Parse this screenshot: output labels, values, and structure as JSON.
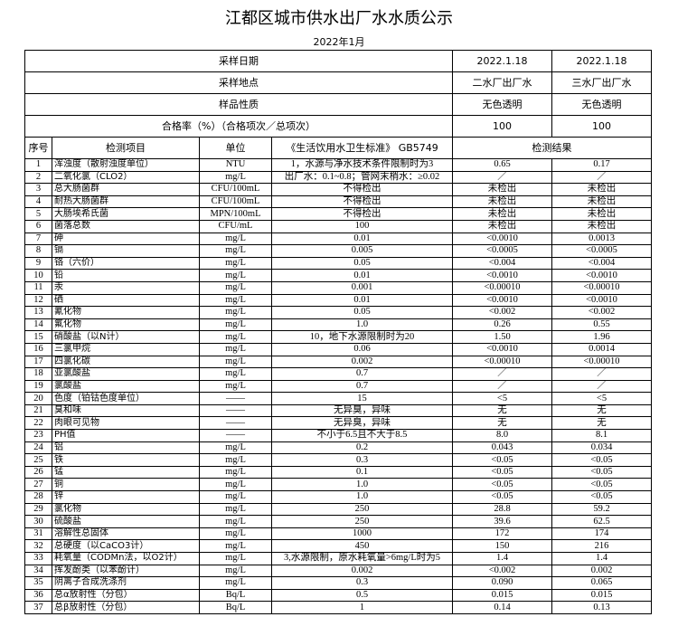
{
  "header": {
    "title": "江都区城市供水出厂水水质公示",
    "date": "2022年1月"
  },
  "table": {
    "meta": [
      [
        "采样日期",
        "2022.1.18",
        "2022.1.18"
      ],
      [
        "采样地点",
        "二水厂出厂水",
        "三水厂出厂水"
      ],
      [
        "样品性质",
        "无色透明",
        "无色透明"
      ],
      [
        "合格率（%）（合格项次／总项次）",
        "100",
        "100"
      ]
    ],
    "columns": [
      "序号",
      "检测项目",
      "单位",
      "《生活饮用水卫生标准》 GB5749",
      "检测结果"
    ],
    "rows": [
      [
        "1",
        "浑浊度（散射浊度单位）",
        "NTU",
        "1，水源与净水技术条件限制时为3",
        "0.65",
        "0.17"
      ],
      [
        "2",
        "二氧化氯（CLO2）",
        "mg/L",
        "出厂水：0.1~0.8；管网末梢水：≥0.02",
        "／",
        "／"
      ],
      [
        "3",
        "总大肠菌群",
        "CFU/100mL",
        "不得检出",
        "未检出",
        "未检出"
      ],
      [
        "4",
        "耐热大肠菌群",
        "CFU/100mL",
        "不得检出",
        "未检出",
        "未检出"
      ],
      [
        "5",
        "大肠埃希氏菌",
        "MPN/100mL",
        "不得检出",
        "未检出",
        "未检出"
      ],
      [
        "6",
        "菌落总数",
        "CFU/mL",
        "100",
        "未检出",
        "未检出"
      ],
      [
        "7",
        "砷",
        "mg/L",
        "0.01",
        "<0.0010",
        "0.0013"
      ],
      [
        "8",
        "镉",
        "mg/L",
        "0.005",
        "<0.0005",
        "<0.0005"
      ],
      [
        "9",
        "铬（六价）",
        "mg/L",
        "0.05",
        "<0.004",
        "<0.004"
      ],
      [
        "10",
        "铅",
        "mg/L",
        "0.01",
        "<0.0010",
        "<0.0010"
      ],
      [
        "11",
        "汞",
        "mg/L",
        "0.001",
        "<0.00010",
        "<0.00010"
      ],
      [
        "12",
        "硒",
        "mg/L",
        "0.01",
        "<0.0010",
        "<0.0010"
      ],
      [
        "13",
        "氰化物",
        "mg/L",
        "0.05",
        "<0.002",
        "<0.002"
      ],
      [
        "14",
        "氟化物",
        "mg/L",
        "1.0",
        "0.26",
        "0.55"
      ],
      [
        "15",
        "硝酸盐（以N计）",
        "mg/L",
        "10，地下水源限制时为20",
        "1.50",
        "1.96"
      ],
      [
        "16",
        "三氯甲烷",
        "mg/L",
        "0.06",
        "<0.0010",
        "0.0014"
      ],
      [
        "17",
        "四氯化碳",
        "mg/L",
        "0.002",
        "<0.00010",
        "<0.00010"
      ],
      [
        "18",
        "亚氯酸盐",
        "mg/L",
        "0.7",
        "／",
        "／"
      ],
      [
        "19",
        "氯酸盐",
        "mg/L",
        "0.7",
        "／",
        "／"
      ],
      [
        "20",
        "色度（铂钴色度单位）",
        "——",
        "15",
        "<5",
        "<5"
      ],
      [
        "21",
        "臭和味",
        "——",
        "无异臭，异味",
        "无",
        "无"
      ],
      [
        "22",
        "肉眼可见物",
        "——",
        "无异臭，异味",
        "无",
        "无"
      ],
      [
        "23",
        "PH值",
        "——",
        "不小于6.5且不大于8.5",
        "8.0",
        "8.1"
      ],
      [
        "24",
        "铝",
        "mg/L",
        "0.2",
        "0.043",
        "0.034"
      ],
      [
        "25",
        "铁",
        "mg/L",
        "0.3",
        "<0.05",
        "<0.05"
      ],
      [
        "26",
        "锰",
        "mg/L",
        "0.1",
        "<0.05",
        "<0.05"
      ],
      [
        "27",
        "铜",
        "mg/L",
        "1.0",
        "<0.05",
        "<0.05"
      ],
      [
        "28",
        "锌",
        "mg/L",
        "1.0",
        "<0.05",
        "<0.05"
      ],
      [
        "29",
        "氯化物",
        "mg/L",
        "250",
        "28.8",
        "59.2"
      ],
      [
        "30",
        "硫酸盐",
        "mg/L",
        "250",
        "39.6",
        "62.5"
      ],
      [
        "31",
        "溶解性总固体",
        "mg/L",
        "1000",
        "172",
        "174"
      ],
      [
        "32",
        "总硬度（以CaCO3计）",
        "mg/L",
        "450",
        "150",
        "216"
      ],
      [
        "33",
        "耗氧量（CODMn法，以O2计）",
        "mg/L",
        "3,水源限制，原水耗氧量>6mg/L时为5",
        "1.4",
        "1.4"
      ],
      [
        "34",
        "挥发酚类（以苯酚计）",
        "mg/L",
        "0.002",
        "<0.002",
        "0.002"
      ],
      [
        "35",
        "阴离子合成洗涤剂",
        "mg/L",
        "0.3",
        "0.090",
        "0.065"
      ],
      [
        "36",
        "总α放射性（分包）",
        "Bq/L",
        "0.5",
        "0.015",
        "0.015"
      ],
      [
        "37",
        "总β放射性（分包）",
        "Bq/L",
        "1",
        "0.14",
        "0.13"
      ]
    ]
  }
}
